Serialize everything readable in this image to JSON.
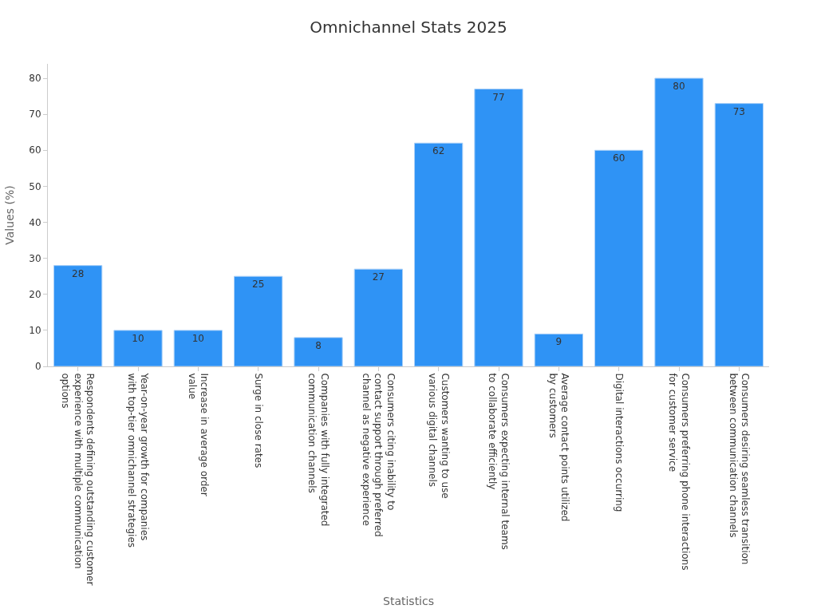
{
  "chart_data": {
    "type": "bar",
    "title": "Omnichannel Stats 2025",
    "xlabel": "Statistics",
    "ylabel": "Values (%)",
    "categories": [
      "Respondents defining outstanding customer\nexperience with multiple communication\noptions",
      "Year-on-year growth for companies\nwith top-tier omnichannel strategies",
      "Increase in average order\nvalue",
      "Surge in close rates",
      "Companies with fully integrated\ncommunication channels",
      "Consumers citing inability to\ncontact support through preferred\nchannel as negative experience",
      "Customers wanting to use\nvarious digital channels",
      "Consumers expecting internal teams\nto collaborate efficiently",
      "Average contact points utilized\nby customers",
      "Digital interactions occurring",
      "Consumers preferring phone interactions\nfor customer service",
      "Consumers desiring seamless transition\nbetween communication channels"
    ],
    "values": [
      28,
      10,
      10,
      25,
      8,
      27,
      62,
      77,
      9,
      60,
      80,
      73
    ],
    "color": "#2f93f5",
    "data_labels": true,
    "ylim": [
      0,
      84
    ],
    "yticks": [
      0,
      10,
      20,
      30,
      40,
      50,
      60,
      70,
      80
    ]
  }
}
